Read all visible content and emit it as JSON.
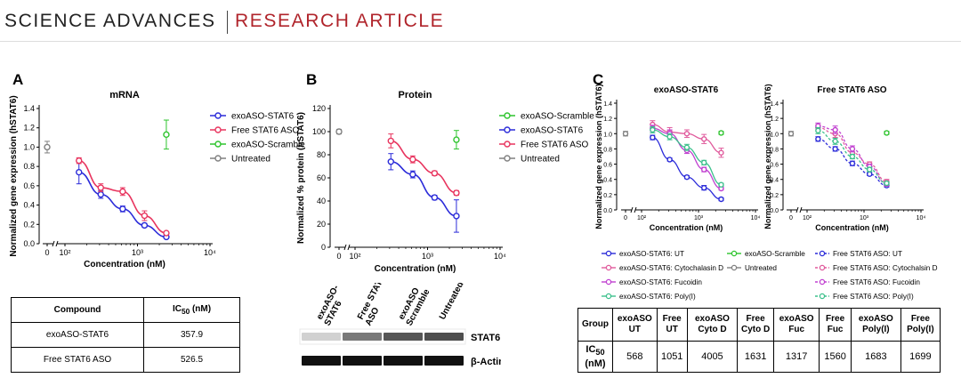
{
  "header": {
    "journal": "SCIENCE ADVANCES",
    "article_type": "RESEARCH ARTICLE",
    "accent_color": "#b0242b"
  },
  "panel_labels": {
    "a": "A",
    "b": "B",
    "c": "C"
  },
  "colors": {
    "exoASO_STAT6": "#2b2bd9",
    "free_STAT6_ASO": "#e8345e",
    "exoASO_scramble": "#2ec42e",
    "untreated": "#808080",
    "cytochalasin": "#e05a9c",
    "fucoidin": "#c040d0",
    "polyI": "#3cc08c"
  },
  "chart_data": [
    {
      "id": "A",
      "type": "scatter",
      "title": "mRNA",
      "xlabel": "Concentration (nM)",
      "ylabel": "Normalized gene expression (hSTAT6)",
      "xscale": "log",
      "xticks": [
        "0",
        "10²",
        "10³",
        "10⁴"
      ],
      "yticks": [
        "0.0",
        "0.2",
        "0.4",
        "0.6",
        "0.8",
        "1.0",
        "1.2",
        "1.4"
      ],
      "ylim": [
        0,
        1.4
      ],
      "series": [
        {
          "name": "exoASO-STAT6",
          "x": [
            156,
            312,
            625,
            1250,
            2500
          ],
          "y": [
            0.74,
            0.51,
            0.36,
            0.19,
            0.07
          ],
          "err": [
            0.12,
            0.04,
            0.03,
            0.02,
            0.01
          ],
          "fit": true
        },
        {
          "name": "Free STAT6 ASO",
          "x": [
            156,
            312,
            625,
            1250,
            2500
          ],
          "y": [
            0.86,
            0.58,
            0.54,
            0.29,
            0.11
          ],
          "err": [
            0.03,
            0.04,
            0.04,
            0.05,
            0.01
          ],
          "fit": true
        },
        {
          "name": "exoASO-Scramble",
          "x": [
            2500
          ],
          "y": [
            1.13
          ],
          "err": [
            0.15
          ],
          "fit": false
        },
        {
          "name": "Untreated",
          "x": [
            0
          ],
          "y": [
            1.0
          ],
          "err": [
            0.06
          ],
          "fit": false
        }
      ],
      "legend_location": "top-right"
    },
    {
      "id": "B",
      "type": "scatter",
      "title": "Protein",
      "xlabel": "Concentration (nM)",
      "ylabel": "Normalized % protein (hSTAT6)",
      "xscale": "log",
      "xticks": [
        "0",
        "10²",
        "10³",
        "10⁴"
      ],
      "yticks": [
        "0",
        "20",
        "40",
        "60",
        "80",
        "100",
        "120"
      ],
      "ylim": [
        0,
        120
      ],
      "series": [
        {
          "name": "exoASO-Scramble",
          "x": [
            2500
          ],
          "y": [
            93
          ],
          "err": [
            8
          ],
          "fit": false
        },
        {
          "name": "exoASO-STAT6",
          "x": [
            312,
            625,
            1250,
            2500
          ],
          "y": [
            74,
            63,
            43,
            27
          ],
          "err": [
            7,
            3,
            2,
            14
          ],
          "fit": true
        },
        {
          "name": "Free STAT6 ASO",
          "x": [
            312,
            625,
            1250,
            2500
          ],
          "y": [
            92,
            76,
            64,
            47
          ],
          "err": [
            6,
            3,
            2,
            2
          ],
          "fit": true
        },
        {
          "name": "Untreated",
          "x": [
            0
          ],
          "y": [
            100
          ],
          "err": [
            2
          ],
          "fit": false
        }
      ],
      "legend_location": "top-right"
    },
    {
      "id": "C-left",
      "type": "scatter",
      "title": "exoASO-STAT6",
      "xlabel": "Concentration (nM)",
      "ylabel": "Normalized gene expression (hSTAT6)",
      "xscale": "log",
      "xticks": [
        "0",
        "10²",
        "10³",
        "10⁴"
      ],
      "yticks": [
        "0.0",
        "0.2",
        "0.4",
        "0.6",
        "0.8",
        "1.0",
        "1.2",
        "1.4"
      ],
      "ylim": [
        0,
        1.4
      ],
      "series": [
        {
          "name": "exoASO-STAT6: UT",
          "x": [
            156,
            312,
            625,
            1250,
            2500
          ],
          "y": [
            0.95,
            0.66,
            0.43,
            0.29,
            0.14
          ],
          "err": [
            0.03,
            0.02,
            0.02,
            0.03,
            0.02
          ],
          "fit": true
        },
        {
          "name": "exoASO-STAT6: Cytochalasin D",
          "x": [
            156,
            312,
            625,
            1250,
            2500
          ],
          "y": [
            1.12,
            1.02,
            1.0,
            0.93,
            0.75
          ],
          "err": [
            0.05,
            0.06,
            0.05,
            0.06,
            0.06
          ],
          "fit": true
        },
        {
          "name": "exoASO-STAT6: Fucoidin",
          "x": [
            156,
            312,
            625,
            1250,
            2500
          ],
          "y": [
            1.07,
            1.0,
            0.78,
            0.53,
            0.28
          ],
          "err": [
            0.04,
            0.05,
            0.04,
            0.03,
            0.02
          ],
          "fit": true
        },
        {
          "name": "exoASO-STAT6: Poly(I)",
          "x": [
            156,
            312,
            625,
            1250,
            2500
          ],
          "y": [
            1.05,
            0.96,
            0.82,
            0.62,
            0.33
          ],
          "err": [
            0.04,
            0.04,
            0.04,
            0.03,
            0.02
          ],
          "fit": true
        },
        {
          "name": "exoASO-Scramble",
          "x": [
            2500
          ],
          "y": [
            1.01
          ],
          "err": [
            0.02
          ],
          "fit": false
        },
        {
          "name": "Untreated",
          "x": [
            0
          ],
          "y": [
            1.0
          ],
          "err": [
            0.03
          ],
          "fit": false
        }
      ]
    },
    {
      "id": "C-right",
      "type": "scatter",
      "title": "Free STAT6 ASO",
      "xlabel": "Concentration (nM)",
      "ylabel": "Normalized gene expression (hSTAT6)",
      "xscale": "log",
      "xticks": [
        "0",
        "10²",
        "10³",
        "10⁴"
      ],
      "yticks": [
        "0.0",
        "0.2",
        "0.4",
        "0.6",
        "0.8",
        "1.0",
        "1.2",
        "1.4"
      ],
      "ylim": [
        0,
        1.4
      ],
      "series": [
        {
          "name": "Free STAT6 ASO: UT",
          "x": [
            156,
            312,
            625,
            1250,
            2500
          ],
          "y": [
            0.93,
            0.8,
            0.61,
            0.47,
            0.32
          ],
          "err": [
            0.03,
            0.03,
            0.03,
            0.02,
            0.02
          ],
          "fit": true
        },
        {
          "name": "Free STAT6 ASO: Cytochalsin D",
          "x": [
            156,
            312,
            625,
            1250,
            2500
          ],
          "y": [
            1.08,
            1.0,
            0.75,
            0.6,
            0.37
          ],
          "err": [
            0.04,
            0.05,
            0.04,
            0.03,
            0.03
          ],
          "fit": true
        },
        {
          "name": "Free STAT6 ASO: Fucoidin",
          "x": [
            156,
            312,
            625,
            1250,
            2500
          ],
          "y": [
            1.1,
            1.05,
            0.8,
            0.57,
            0.34
          ],
          "err": [
            0.04,
            0.05,
            0.04,
            0.03,
            0.03
          ],
          "fit": true
        },
        {
          "name": "Free STAT6 ASO: Poly(I)",
          "x": [
            156,
            312,
            625,
            1250,
            2500
          ],
          "y": [
            1.04,
            0.9,
            0.7,
            0.53,
            0.35
          ],
          "err": [
            0.04,
            0.04,
            0.03,
            0.03,
            0.02
          ],
          "fit": true
        },
        {
          "name": "exoASO-Scramble",
          "x": [
            2500
          ],
          "y": [
            1.01
          ],
          "err": [
            0.02
          ],
          "fit": false
        },
        {
          "name": "Untreated",
          "x": [
            0
          ],
          "y": [
            1.0
          ],
          "err": [
            0.03
          ],
          "fit": false
        }
      ]
    }
  ],
  "legend_c": [
    {
      "label": "exoASO-STAT6: UT",
      "color": "#2b2bd9",
      "dashed": false
    },
    {
      "label": "exoASO-Scramble",
      "color": "#2ec42e",
      "dashed": false
    },
    {
      "label": "Free STAT6 ASO: UT",
      "color": "#2b2bd9",
      "dashed": true
    },
    {
      "label": "exoASO-STAT6: Cytochalasin D",
      "color": "#e05a9c",
      "dashed": false
    },
    {
      "label": "Untreated",
      "color": "#808080",
      "dashed": false
    },
    {
      "label": "Free STAT6 ASO: Cytochalsin D",
      "color": "#e05a9c",
      "dashed": true
    },
    {
      "label": "exoASO-STAT6: Fucoidin",
      "color": "#c040d0",
      "dashed": false
    },
    {
      "label": "Free STAT6 ASO: Fucoidin",
      "color": "#c040d0",
      "dashed": true
    },
    {
      "label": "exoASO-STAT6: Poly(I)",
      "color": "#3cc08c",
      "dashed": false
    },
    {
      "label": "Free STAT6 ASO: Poly(I)",
      "color": "#3cc08c",
      "dashed": true
    }
  ],
  "table_a": {
    "headers": [
      "Compound",
      "IC",
      "50",
      " (nM)"
    ],
    "rows": [
      [
        "exoASO-STAT6",
        "357.9"
      ],
      [
        "Free STAT6 ASO",
        "526.5"
      ]
    ]
  },
  "blot": {
    "lanes": [
      "exoASO-STAT6",
      "Free STAT6 ASO",
      "exoASO Scramble",
      "Untreated"
    ],
    "bands": [
      "STAT6",
      "β-Actin"
    ]
  },
  "table_c": {
    "headers": [
      "Group",
      "exoASO UT",
      "Free UT",
      "exoASO Cyto D",
      "Free Cyto D",
      "exoASO Fuc",
      "Free Fuc",
      "exoASO Poly(I)",
      "Free Poly(I)"
    ],
    "row_label_main": "IC",
    "row_label_sub": "50",
    "row_label_unit": "(nM)",
    "values": [
      "568",
      "1051",
      "4005",
      "1631",
      "1317",
      "1560",
      "1683",
      "1699"
    ]
  }
}
